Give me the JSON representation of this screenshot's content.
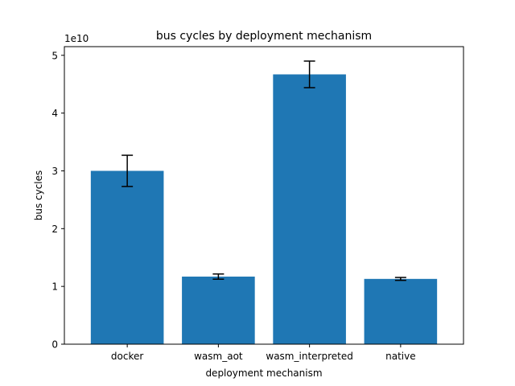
{
  "chart_data": {
    "type": "bar",
    "title": "bus cycles by deployment mechanism",
    "xlabel": "deployment mechanism",
    "ylabel": "bus cycles",
    "y_offset_label": "1e10",
    "categories": [
      "docker",
      "wasm_aot",
      "wasm_interpreted",
      "native"
    ],
    "values": [
      30000000000,
      11700000000,
      46700000000,
      11300000000
    ],
    "errors": [
      2700000000,
      450000000,
      2300000000,
      250000000
    ],
    "ylim": [
      0,
      51500000000
    ],
    "yticks": [
      0,
      10000000000,
      20000000000,
      30000000000,
      40000000000,
      50000000000
    ],
    "ytick_labels": [
      "0",
      "1",
      "2",
      "3",
      "4",
      "5"
    ],
    "grid": false,
    "legend": "none",
    "bar_color": "#1f77b4",
    "error_color": "#000000"
  }
}
